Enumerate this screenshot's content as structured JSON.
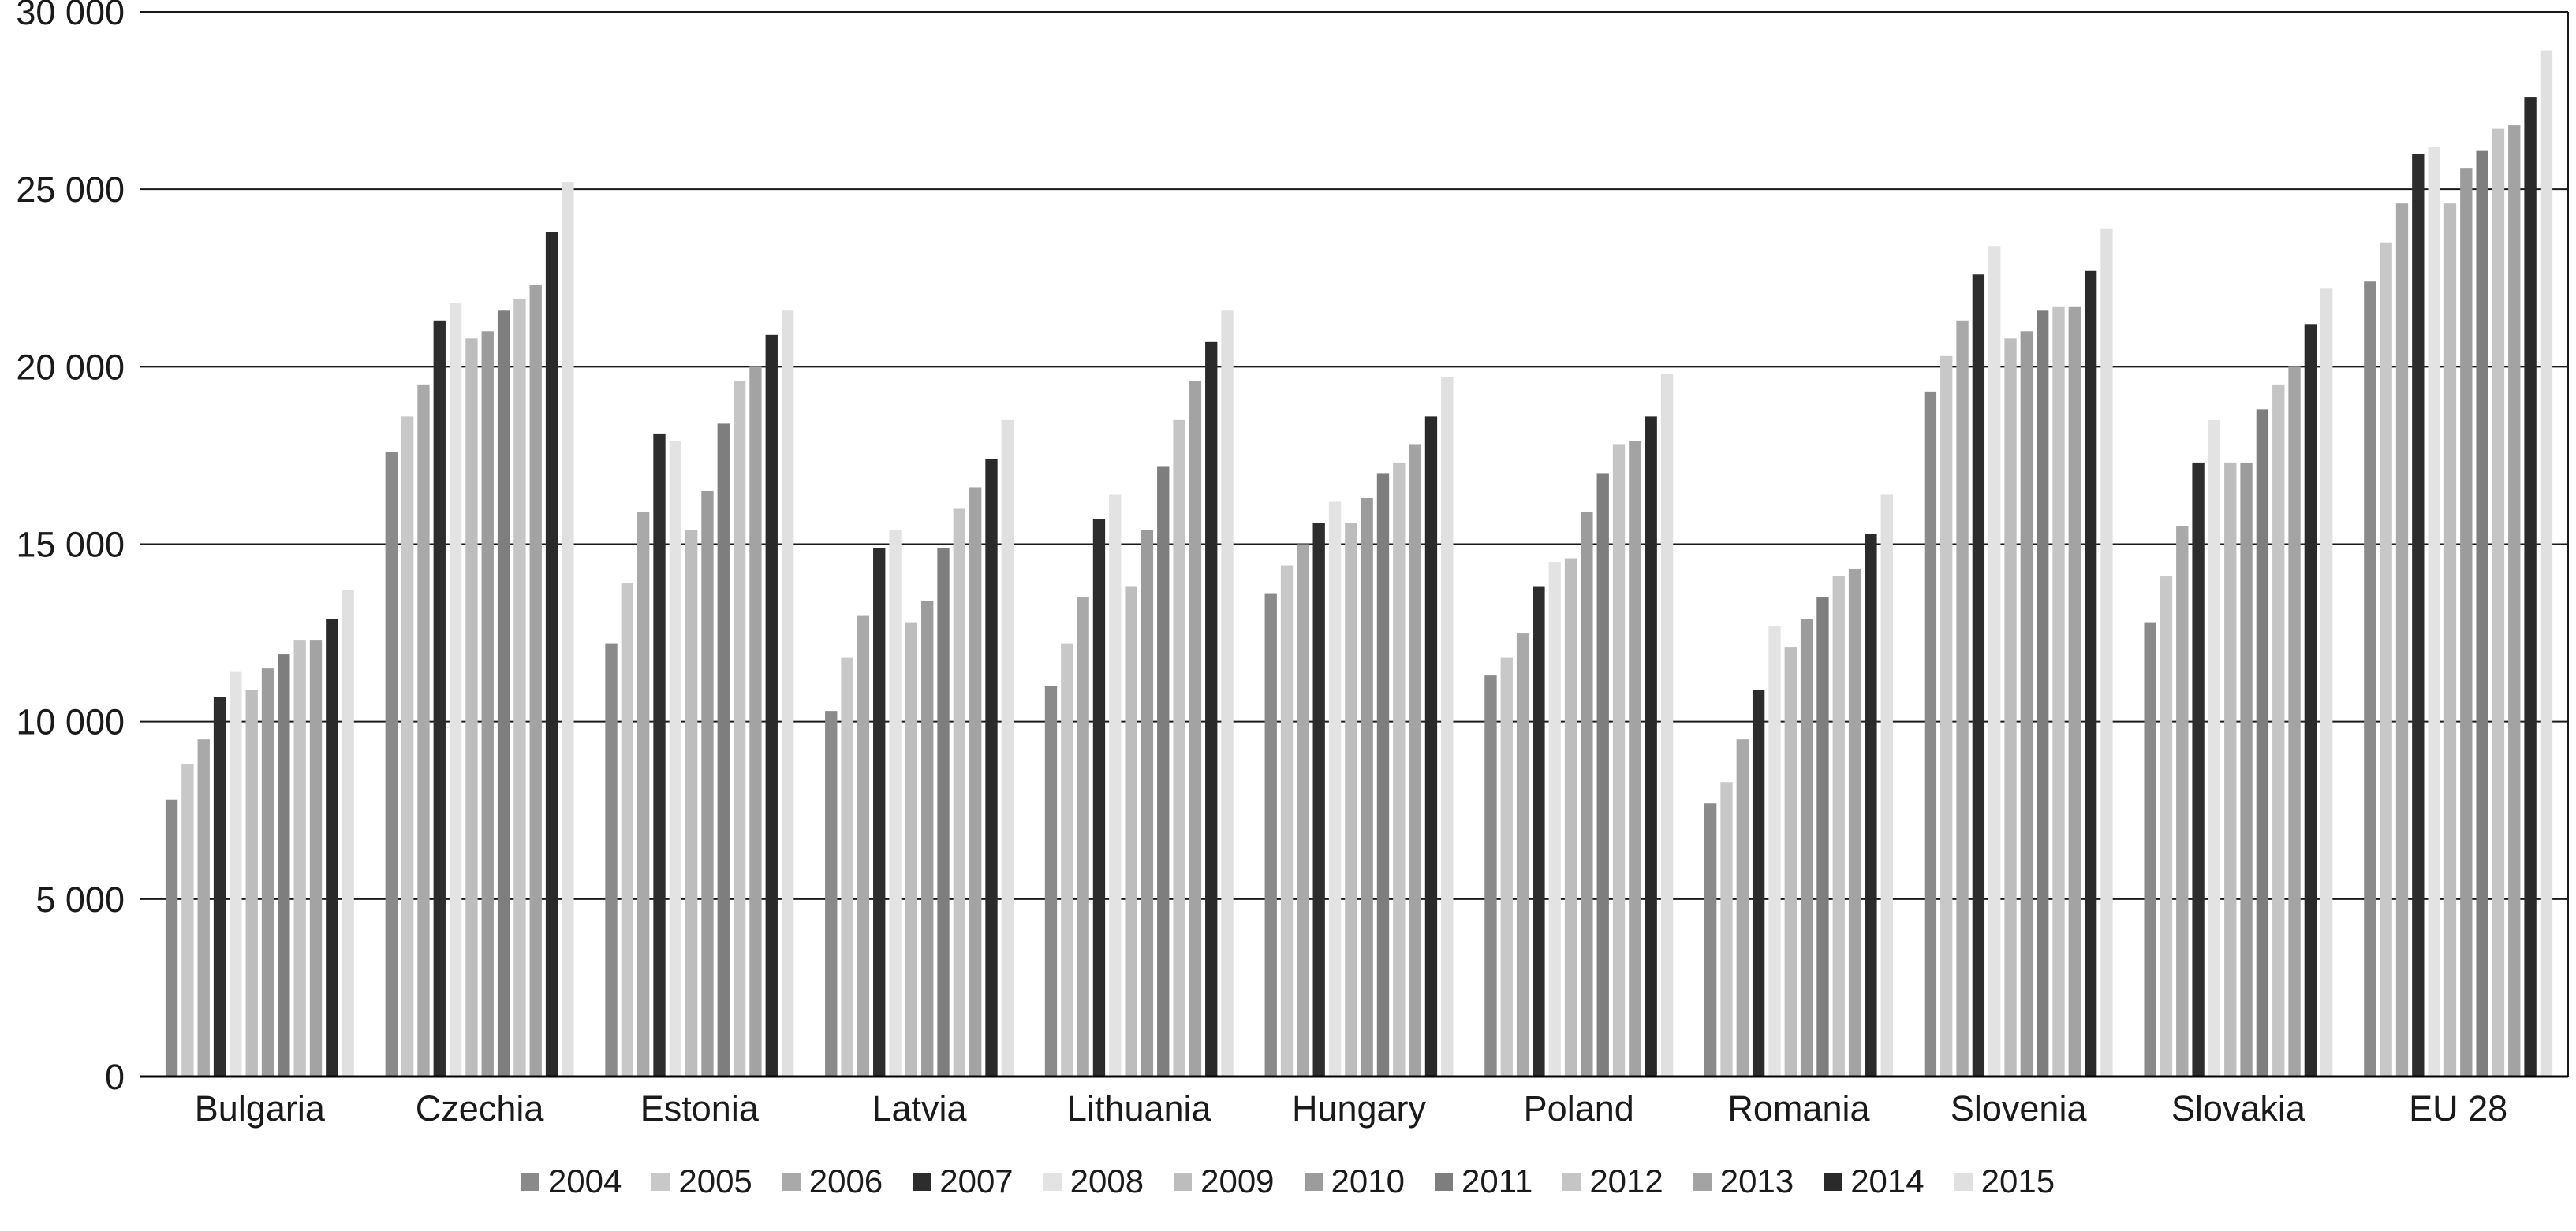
{
  "chart_data": {
    "type": "bar",
    "title": "",
    "xlabel": "",
    "ylabel": "",
    "grid": true,
    "legend_position": "bottom",
    "ylim": [
      0,
      30000
    ],
    "ytick_interval": 5000,
    "ytick_labels": [
      "0",
      "5 000",
      "10 000",
      "15 000",
      "20 000",
      "25 000",
      "30 000"
    ],
    "categories": [
      "Bulgaria",
      "Czechia",
      "Estonia",
      "Latvia",
      "Lithuania",
      "Hungary",
      "Poland",
      "Romania",
      "Slovenia",
      "Slovakia",
      "EU 28"
    ],
    "series": [
      {
        "name": "2004",
        "color": "#8a8a8a",
        "values": [
          7800,
          17600,
          12200,
          10300,
          11000,
          13600,
          11300,
          7700,
          19300,
          12800,
          22400
        ]
      },
      {
        "name": "2005",
        "color": "#c8c8c8",
        "values": [
          8800,
          18600,
          13900,
          11800,
          12200,
          14400,
          11800,
          8300,
          20300,
          14100,
          23500
        ]
      },
      {
        "name": "2006",
        "color": "#a9a9a9",
        "values": [
          9500,
          19500,
          15900,
          13000,
          13500,
          15000,
          12500,
          9500,
          21300,
          15500,
          24600
        ]
      },
      {
        "name": "2007",
        "color": "#2d2d2d",
        "values": [
          10700,
          21300,
          18100,
          14900,
          15700,
          15600,
          13800,
          10900,
          22600,
          17300,
          26000
        ]
      },
      {
        "name": "2008",
        "color": "#e3e3e3",
        "values": [
          11400,
          21800,
          17900,
          15400,
          16400,
          16200,
          14500,
          12700,
          23400,
          18500,
          26200
        ]
      },
      {
        "name": "2009",
        "color": "#bdbdbd",
        "values": [
          10900,
          20800,
          15400,
          12800,
          13800,
          15600,
          14600,
          12100,
          20800,
          17300,
          24600
        ]
      },
      {
        "name": "2010",
        "color": "#9c9c9c",
        "values": [
          11500,
          21000,
          16500,
          13400,
          15400,
          16300,
          15900,
          12900,
          21000,
          17300,
          25600
        ]
      },
      {
        "name": "2011",
        "color": "#7e7e7e",
        "values": [
          11900,
          21600,
          18400,
          14900,
          17200,
          17000,
          17000,
          13500,
          21600,
          18800,
          26100
        ]
      },
      {
        "name": "2012",
        "color": "#c5c5c5",
        "values": [
          12300,
          21900,
          19600,
          16000,
          18500,
          17300,
          17800,
          14100,
          21700,
          19500,
          26700
        ]
      },
      {
        "name": "2013",
        "color": "#a3a3a3",
        "values": [
          12300,
          22300,
          20000,
          16600,
          19600,
          17800,
          17900,
          14300,
          21700,
          20000,
          26800
        ]
      },
      {
        "name": "2014",
        "color": "#2a2a2a",
        "values": [
          12900,
          23800,
          20900,
          17400,
          20700,
          18600,
          18600,
          15300,
          22700,
          21200,
          27600
        ]
      },
      {
        "name": "2015",
        "color": "#e0e0e0",
        "values": [
          13700,
          25200,
          21600,
          18500,
          21600,
          19700,
          19800,
          16400,
          23900,
          22200,
          28900
        ]
      }
    ],
    "axis_colors": {
      "gridline": "#1a1a1a",
      "baseline": "#000000",
      "text": "#1a1a1a"
    }
  }
}
